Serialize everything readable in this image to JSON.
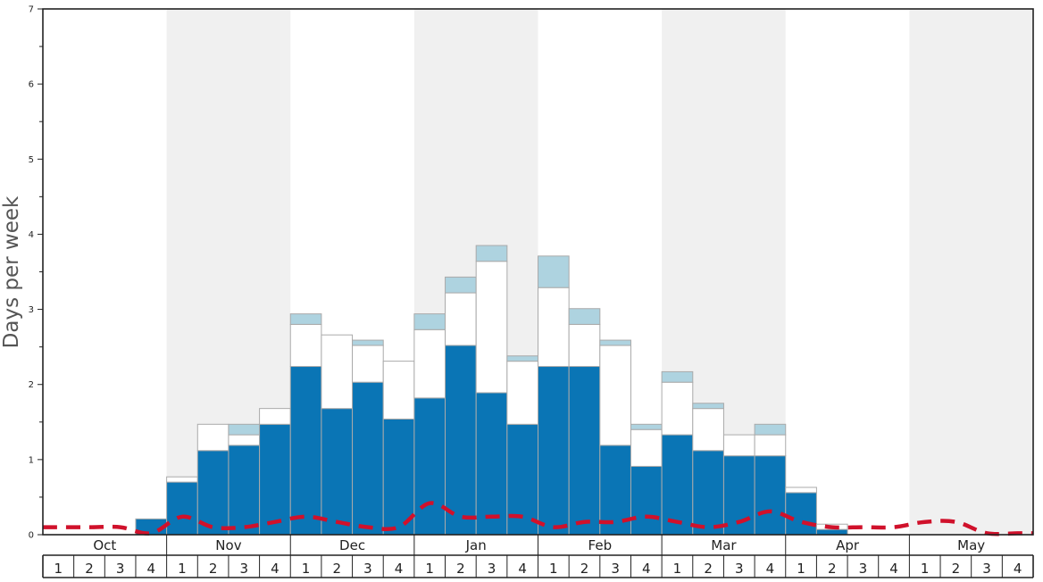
{
  "chart_data": {
    "type": "bar",
    "stacked": true,
    "ylabel": "Days per week",
    "ylim": [
      0,
      7
    ],
    "y_ticks": [
      "0",
      "1",
      "2",
      "3",
      "4",
      "5",
      "6",
      "7"
    ],
    "months": [
      "Oct",
      "Nov",
      "Dec",
      "Jan",
      "Feb",
      "Mar",
      "Apr",
      "May"
    ],
    "week_labels": [
      "1",
      "2",
      "3",
      "4"
    ],
    "shaded_months": [
      "Nov",
      "Jan",
      "Mar",
      "May"
    ],
    "colors": {
      "blue": "#0a75b5",
      "white": "#ffffff",
      "light_blue": "#aed3e0",
      "dashed_line": "#d0112b",
      "shade": "#f0f0f0",
      "border": "#222222",
      "bar_outline": "#aaaaaa"
    },
    "series": [
      {
        "color": "#0a75b5",
        "values": [
          0,
          0,
          0,
          0.21,
          0.7,
          1.12,
          1.19,
          1.47,
          2.24,
          1.68,
          2.03,
          1.54,
          1.82,
          2.52,
          1.89,
          1.47,
          2.24,
          2.24,
          1.19,
          0.91,
          1.33,
          1.12,
          1.05,
          1.05,
          0.56,
          0.07,
          0,
          0,
          0,
          0,
          0,
          0
        ]
      },
      {
        "color": "#ffffff",
        "values": [
          0,
          0,
          0,
          0,
          0.07,
          0.35,
          0.14,
          0.21,
          0.56,
          0.98,
          0.49,
          0.77,
          0.91,
          0.7,
          1.75,
          0.84,
          1.05,
          0.56,
          1.33,
          0.49,
          0.7,
          0.56,
          0.28,
          0.28,
          0.07,
          0.07,
          0,
          0,
          0,
          0,
          0,
          0
        ]
      },
      {
        "color": "#aed3e0",
        "values": [
          0,
          0,
          0,
          0,
          0,
          0,
          0.14,
          0,
          0.14,
          0,
          0.07,
          0,
          0.21,
          0.21,
          0.21,
          0.07,
          0.42,
          0.21,
          0.07,
          0.07,
          0.14,
          0.07,
          0,
          0.14,
          0,
          0,
          0,
          0,
          0,
          0,
          0,
          0
        ]
      }
    ],
    "line_series": {
      "style": "dashed",
      "color": "#d0112b",
      "values": [
        0.1,
        0.1,
        0.1,
        0.02,
        0.24,
        0.1,
        0.1,
        0.17,
        0.24,
        0.17,
        0.1,
        0.1,
        0.42,
        0.24,
        0.24,
        0.24,
        0.1,
        0.17,
        0.17,
        0.24,
        0.17,
        0.1,
        0.17,
        0.31,
        0.17,
        0.1,
        0.1,
        0.1,
        0.17,
        0.17,
        0.02,
        0.02
      ]
    },
    "grid": false,
    "legend": "none"
  }
}
